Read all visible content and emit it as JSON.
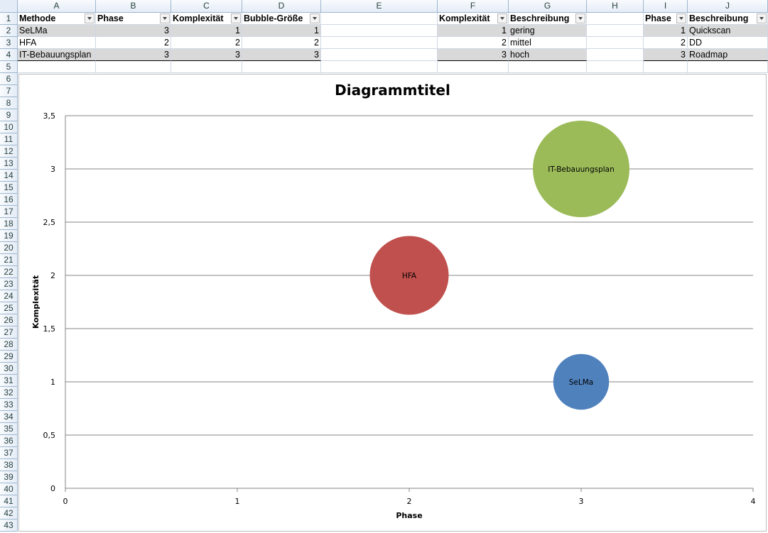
{
  "columns": [
    "A",
    "B",
    "C",
    "D",
    "E",
    "F",
    "G",
    "H",
    "I",
    "J"
  ],
  "rows": [
    "1",
    "2",
    "3",
    "4",
    "5",
    "6",
    "7",
    "8",
    "9",
    "10",
    "11",
    "12",
    "13",
    "14",
    "15",
    "16",
    "17",
    "18",
    "19",
    "20",
    "21",
    "22",
    "23",
    "24",
    "25",
    "26",
    "27",
    "28",
    "29",
    "30",
    "31",
    "32",
    "33",
    "34",
    "35",
    "36",
    "37",
    "38",
    "39",
    "40",
    "41",
    "42",
    "43"
  ],
  "table1": {
    "headers": [
      "Methode",
      "Phase",
      "Komplexität",
      "Bubble-Größe"
    ],
    "rows": [
      [
        "SeLMa",
        "3",
        "1",
        "1"
      ],
      [
        "HFA",
        "2",
        "2",
        "2"
      ],
      [
        "IT-Bebauungsplan",
        "3",
        "3",
        "3"
      ]
    ]
  },
  "table2": {
    "headers": [
      "Komplexität",
      "Beschreibung"
    ],
    "rows": [
      [
        "1",
        "gering"
      ],
      [
        "2",
        "mittel"
      ],
      [
        "3",
        "hoch"
      ]
    ]
  },
  "table3": {
    "headers": [
      "Phase",
      "Beschreibung"
    ],
    "rows": [
      [
        "1",
        "Quickscan"
      ],
      [
        "2",
        "DD"
      ],
      [
        "3",
        "Roadmap"
      ]
    ]
  },
  "colors": {
    "selma": "#4f81bd",
    "hfa": "#c0504d",
    "itb": "#9bbb59"
  },
  "chart_data": {
    "type": "bubble",
    "title": "Diagrammtitel",
    "xlabel": "Phase",
    "ylabel": "Komplexität",
    "xlim": [
      0,
      4
    ],
    "ylim": [
      0,
      3.5
    ],
    "x_ticks": [
      "0",
      "1",
      "2",
      "3",
      "4"
    ],
    "y_ticks": [
      "0",
      "0,5",
      "1",
      "1,5",
      "2",
      "2,5",
      "3",
      "3,5"
    ],
    "grid": true,
    "points": [
      {
        "label": "SeLMa",
        "x": 3,
        "y": 1,
        "size": 1
      },
      {
        "label": "HFA",
        "x": 2,
        "y": 2,
        "size": 2
      },
      {
        "label": "IT-Bebauungsplan",
        "x": 3,
        "y": 3,
        "size": 3
      }
    ]
  }
}
